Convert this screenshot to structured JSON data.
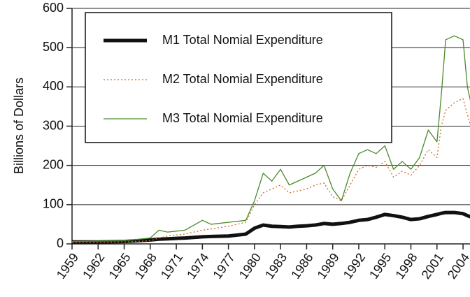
{
  "chart_data": {
    "type": "line",
    "y_label": "Billions of Dollars",
    "x": [
      1959,
      1962,
      1965,
      1968,
      1969,
      1970,
      1972,
      1974,
      1975,
      1977,
      1979,
      1980,
      1981,
      1982,
      1983,
      1984,
      1985,
      1986,
      1987,
      1988,
      1989,
      1990,
      1991,
      1992,
      1993,
      1994,
      1995,
      1996,
      1997,
      1998,
      1999,
      2000,
      2001,
      2001.5,
      2002,
      2003,
      2004,
      2004.5,
      2005
    ],
    "series": [
      {
        "name": "M1 Total Nomial Expenditure",
        "color": "#111111",
        "values": [
          5,
          5,
          6,
          10,
          12,
          13,
          15,
          18,
          19,
          20,
          25,
          40,
          48,
          45,
          44,
          43,
          45,
          46,
          48,
          52,
          50,
          52,
          55,
          60,
          62,
          68,
          75,
          72,
          68,
          62,
          64,
          70,
          75,
          78,
          80,
          80,
          77,
          72,
          68
        ]
      },
      {
        "name": "M2 Total Nomial Expenditure",
        "color": "#d2691e",
        "values": [
          4,
          4,
          5,
          8,
          15,
          20,
          25,
          35,
          38,
          45,
          55,
          100,
          130,
          140,
          150,
          130,
          135,
          140,
          150,
          155,
          120,
          110,
          150,
          190,
          200,
          195,
          210,
          170,
          185,
          175,
          200,
          240,
          220,
          300,
          340,
          360,
          370,
          330,
          290
        ]
      },
      {
        "name": "M3 Total Nomial Expenditure",
        "color": "#4a8a2a",
        "values": [
          6,
          7,
          8,
          15,
          35,
          30,
          35,
          60,
          50,
          55,
          60,
          110,
          180,
          160,
          190,
          150,
          160,
          170,
          180,
          200,
          140,
          110,
          180,
          230,
          240,
          230,
          250,
          190,
          210,
          190,
          220,
          290,
          260,
          380,
          520,
          530,
          520,
          400,
          350
        ]
      }
    ],
    "xlim": [
      1959,
      2004.8
    ],
    "xticks": [
      1959,
      1962,
      1965,
      1968,
      1971,
      1974,
      1977,
      1980,
      1983,
      1986,
      1989,
      1992,
      1995,
      1998,
      2001,
      2004
    ],
    "ylim": [
      0,
      600
    ],
    "yticks": [
      0,
      100,
      200,
      300,
      400,
      500,
      600
    ],
    "grid": true
  }
}
